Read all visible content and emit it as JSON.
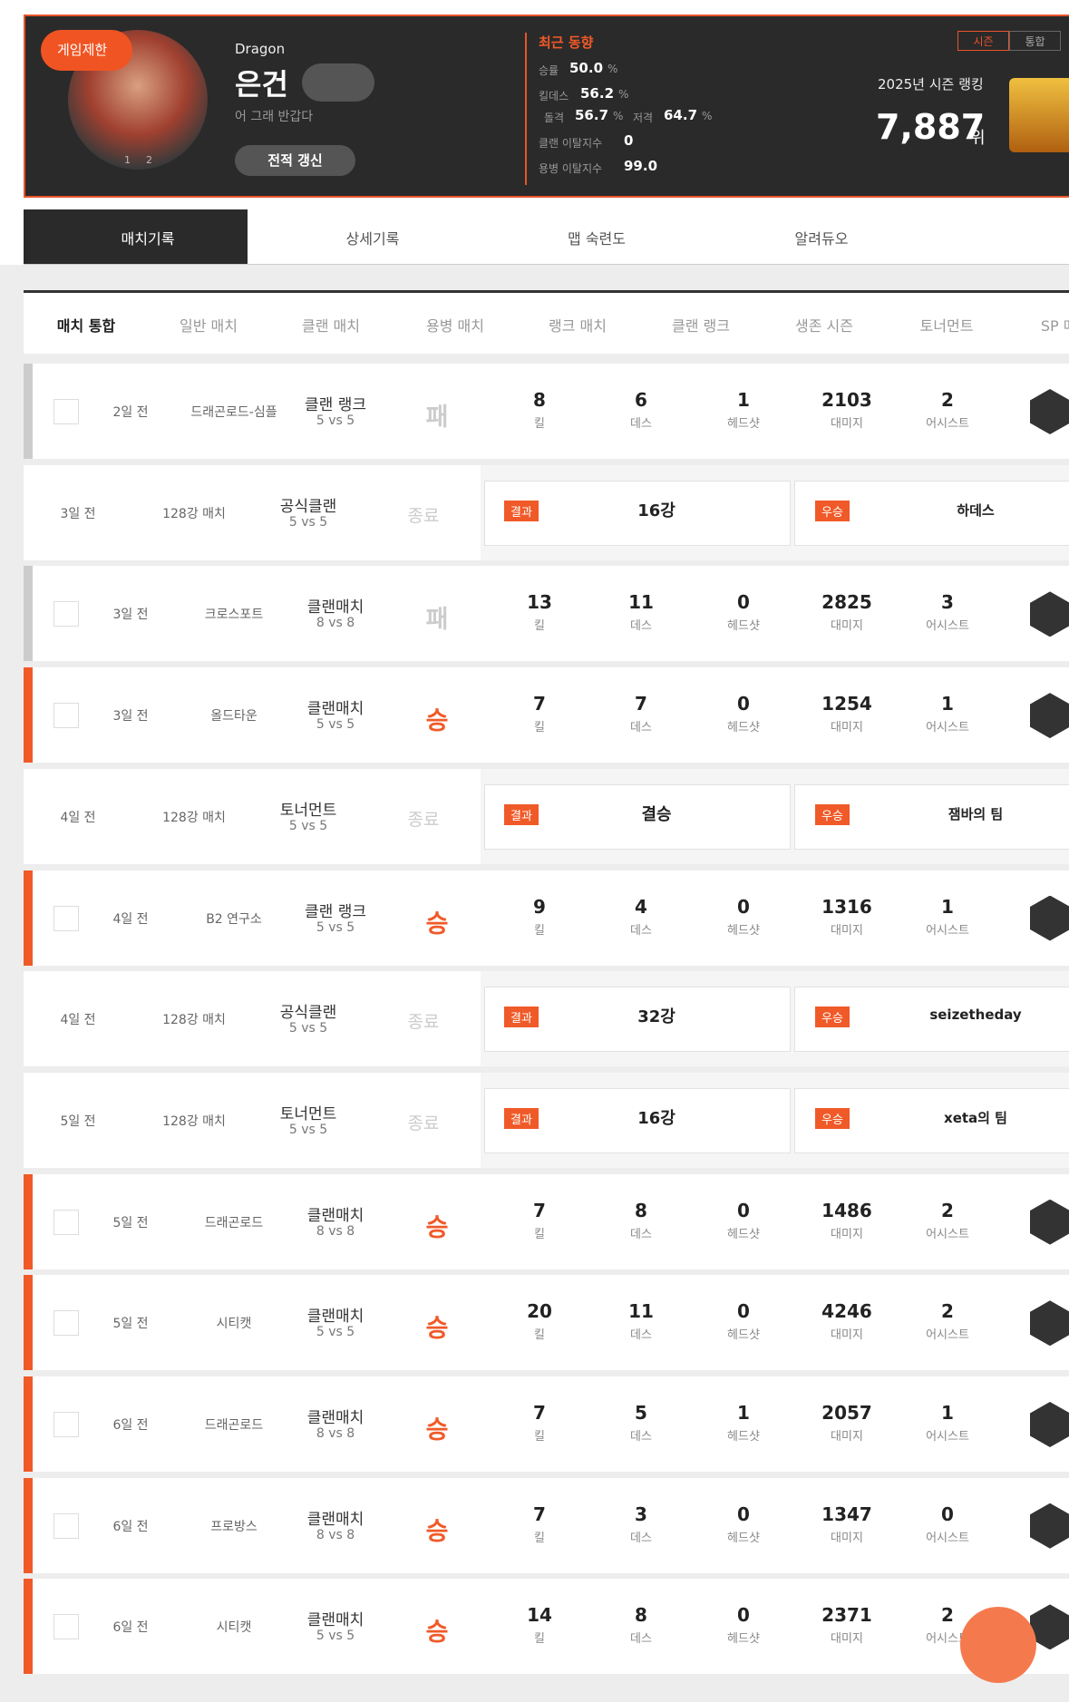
{
  "profile": {
    "badge": "게임제한",
    "avatar_pages": [
      "1",
      "2"
    ],
    "clan": "Dragon",
    "name": "은건",
    "status": "어 그래 반갑다",
    "refresh": "전적 갱신"
  },
  "recent": {
    "title": "최근 동향",
    "stats": [
      {
        "label": "승률",
        "value": "50.0",
        "unit": "%"
      },
      {
        "label": "킬데스",
        "value": "56.2",
        "unit": "%"
      },
      {
        "label": "돌격",
        "value": "56.7",
        "unit": "%"
      },
      {
        "label": "저격",
        "value": "64.7",
        "unit": "%"
      },
      {
        "label": "클랜 이탈지수",
        "value": "0"
      },
      {
        "label": "용병 이탈지수",
        "value": "99.0"
      }
    ]
  },
  "ranking": {
    "tabs": [
      "시즌",
      "통합"
    ],
    "label": "2025년 시즌 랭킹",
    "rank": "7,887",
    "unit": "위"
  },
  "tabs": [
    "매치기록",
    "상세기록",
    "맵 숙련도",
    "알려듀오"
  ],
  "filters": [
    "매치 통합",
    "일반 매치",
    "클랜 매치",
    "용병 매치",
    "랭크 매치",
    "클랜 랭크",
    "생존 시즌",
    "토너먼트",
    "SP 매치"
  ],
  "labels": {
    "kills": "킬",
    "deaths": "데스",
    "headshots": "헤드샷",
    "damage": "대미지",
    "assists": "어시스트",
    "result": "결과",
    "winner": "우승"
  },
  "matches": [
    {
      "time": "2일 전",
      "map": "드래곤로드-심플",
      "mode": "클랜 랭크",
      "size": "5 vs 5",
      "result": "패",
      "kills": 8,
      "deaths": 6,
      "headshots": 1,
      "damage": 2103,
      "assists": 2
    },
    {
      "time": "3일 전",
      "round": "128강 매치",
      "mode": "공식클랜",
      "size": "5 vs 5",
      "result": "종료",
      "stage": "16강",
      "winner": "하데스"
    },
    {
      "time": "3일 전",
      "map": "크로스포트",
      "mode": "클랜매치",
      "size": "8 vs 8",
      "result": "패",
      "kills": 13,
      "deaths": 11,
      "headshots": 0,
      "damage": 2825,
      "assists": 3
    },
    {
      "time": "3일 전",
      "map": "올드타운",
      "mode": "클랜매치",
      "size": "5 vs 5",
      "result": "승",
      "kills": 7,
      "deaths": 7,
      "headshots": 0,
      "damage": 1254,
      "assists": 1
    },
    {
      "time": "4일 전",
      "round": "128강 매치",
      "mode": "토너먼트",
      "size": "5 vs 5",
      "result": "종료",
      "stage": "결승",
      "winner": "잼바의 팀"
    },
    {
      "time": "4일 전",
      "map": "B2 연구소",
      "mode": "클랜 랭크",
      "size": "5 vs 5",
      "result": "승",
      "kills": 9,
      "deaths": 4,
      "headshots": 0,
      "damage": 1316,
      "assists": 1
    },
    {
      "time": "4일 전",
      "round": "128강 매치",
      "mode": "공식클랜",
      "size": "5 vs 5",
      "result": "종료",
      "stage": "32강",
      "winner": "seizetheday"
    },
    {
      "time": "5일 전",
      "round": "128강 매치",
      "mode": "토너먼트",
      "size": "5 vs 5",
      "result": "종료",
      "stage": "16강",
      "winner": "xeta의 팀"
    },
    {
      "time": "5일 전",
      "map": "드래곤로드",
      "mode": "클랜매치",
      "size": "8 vs 8",
      "result": "승",
      "kills": 7,
      "deaths": 8,
      "headshots": 0,
      "damage": 1486,
      "assists": 2
    },
    {
      "time": "5일 전",
      "map": "시티캣",
      "mode": "클랜매치",
      "size": "5 vs 5",
      "result": "승",
      "kills": 20,
      "deaths": 11,
      "headshots": 0,
      "damage": 4246,
      "assists": 2
    },
    {
      "time": "6일 전",
      "map": "드래곤로드",
      "mode": "클랜매치",
      "size": "8 vs 8",
      "result": "승",
      "kills": 7,
      "deaths": 5,
      "headshots": 1,
      "damage": 2057,
      "assists": 1
    },
    {
      "time": "6일 전",
      "map": "프로방스",
      "mode": "클랜매치",
      "size": "8 vs 8",
      "result": "승",
      "kills": 7,
      "deaths": 3,
      "headshots": 0,
      "damage": 1347,
      "assists": 0
    },
    {
      "time": "6일 전",
      "map": "시티캣",
      "mode": "클랜매치",
      "size": "5 vs 5",
      "result": "승",
      "kills": 14,
      "deaths": 8,
      "headshots": 0,
      "damage": 2371,
      "assists": 2
    }
  ]
}
